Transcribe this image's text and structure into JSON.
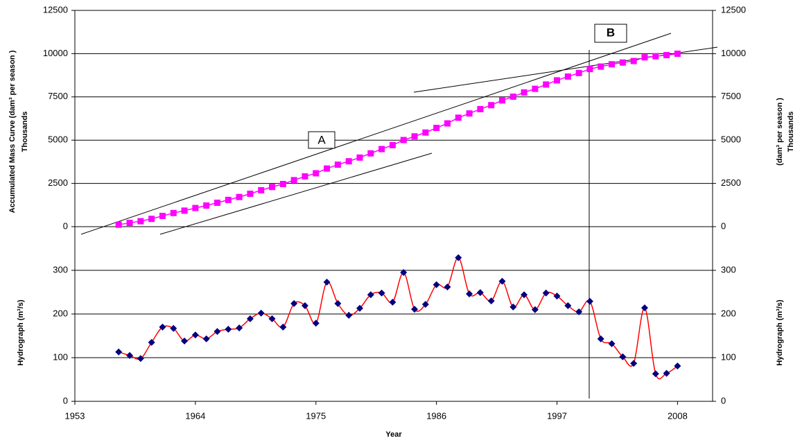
{
  "chart_data": [
    {
      "type": "line",
      "marker": "square",
      "color": "#ff00ff",
      "ylabel": "Accumulated Mass Curve   (dam³ per season )",
      "ylabel_unit": "Thousands",
      "y2label": "(dam³ per season )",
      "y2label_unit": "Thousands",
      "annotations": [
        "A",
        "B"
      ],
      "xlim": [
        1953,
        2011.2
      ],
      "x": [
        1957,
        1958,
        1959,
        1960,
        1961,
        1962,
        1963,
        1964,
        1965,
        1966,
        1967,
        1968,
        1969,
        1970,
        1971,
        1972,
        1973,
        1974,
        1975,
        1976,
        1977,
        1978,
        1979,
        1980,
        1981,
        1982,
        1983,
        1984,
        1985,
        1986,
        1987,
        1988,
        1989,
        1990,
        1991,
        1992,
        1993,
        1994,
        1995,
        1996,
        1997,
        1998,
        1999,
        2000,
        2001,
        2002,
        2003,
        2004,
        2005,
        2006,
        2007,
        2008
      ],
      "values": [
        113,
        218,
        316,
        451,
        621,
        788,
        926,
        1078,
        1221,
        1381,
        1546,
        1714,
        1903,
        2105,
        2294,
        2464,
        2688,
        2907,
        3086,
        3359,
        3583,
        3780,
        3993,
        4237,
        4485,
        4712,
        5007,
        5218,
        5440,
        5707,
        5969,
        6298,
        6544,
        6793,
        7023,
        7298,
        7514,
        7758,
        7968,
        8216,
        8457,
        8676,
        8881,
        9110,
        9253,
        9385,
        9487,
        9574,
        9788,
        9851,
        9915,
        9996
      ],
      "ylim": [
        -1250,
        12500
      ],
      "yticks": [
        0,
        2500,
        5000,
        7500,
        10000,
        12500
      ],
      "grid": true
    },
    {
      "type": "line",
      "marker": "diamond",
      "smooth": true,
      "color": "#ff0000",
      "marker_color": "#000080",
      "ylabel": "Hydrograph (m³/s)",
      "y2label": "Hydrograph (m³/s)",
      "xlabel": "Year",
      "xlim": [
        1953,
        2011.2
      ],
      "xticks": [
        1953,
        1964,
        1975,
        1986,
        1997,
        2008
      ],
      "x": [
        1957,
        1958,
        1959,
        1960,
        1961,
        1962,
        1963,
        1964,
        1965,
        1966,
        1967,
        1968,
        1969,
        1970,
        1971,
        1972,
        1973,
        1974,
        1975,
        1976,
        1977,
        1978,
        1979,
        1980,
        1981,
        1982,
        1983,
        1984,
        1985,
        1986,
        1987,
        1988,
        1989,
        1990,
        1991,
        1992,
        1993,
        1994,
        1995,
        1996,
        1997,
        1998,
        1999,
        2000,
        2001,
        2002,
        2003,
        2004,
        2005,
        2006,
        2007,
        2008
      ],
      "values": [
        113,
        105,
        98,
        135,
        170,
        167,
        138,
        152,
        143,
        160,
        165,
        168,
        189,
        202,
        189,
        170,
        224,
        219,
        179,
        273,
        224,
        197,
        213,
        244,
        248,
        227,
        295,
        211,
        222,
        267,
        262,
        329,
        246,
        249,
        230,
        275,
        216,
        244,
        210,
        248,
        241,
        219,
        205,
        229,
        143,
        132,
        102,
        87,
        214,
        63,
        64,
        81
      ],
      "ylim": [
        0,
        350
      ],
      "yticks": [
        0,
        100,
        200,
        300
      ],
      "grid": true
    }
  ]
}
